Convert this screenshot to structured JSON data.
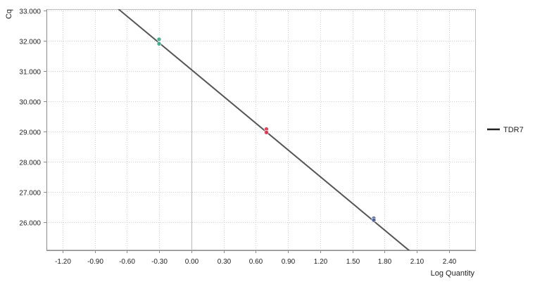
{
  "chart_data": {
    "type": "scatter",
    "title": "",
    "xlabel": "Log Quantity",
    "ylabel": "Cq",
    "xlim": [
      -1.35,
      2.65
    ],
    "ylim": [
      25.0,
      33.0
    ],
    "x_ticks": [
      "-1.20",
      "-0.90",
      "-0.60",
      "-0.30",
      "0.00",
      "0.30",
      "0.60",
      "0.90",
      "1.20",
      "1.50",
      "1.80",
      "2.10",
      "2.40"
    ],
    "y_ticks": [
      "26.000",
      "27.000",
      "28.000",
      "29.000",
      "30.000",
      "31.000",
      "32.000",
      "33.000"
    ],
    "grid": true,
    "legend_position": "right",
    "series": [
      {
        "name": "TDR7",
        "type": "line",
        "color": "#555555",
        "x": [
          -0.68,
          2.05
        ],
        "y": [
          33.05,
          25.0
        ]
      }
    ],
    "points": [
      {
        "x": -0.301,
        "y": 32.05,
        "color": "#3aa98a"
      },
      {
        "x": -0.301,
        "y": 31.9,
        "color": "#3aa98a"
      },
      {
        "x": 0.699,
        "y": 29.08,
        "color": "#e0334f"
      },
      {
        "x": 0.699,
        "y": 28.97,
        "color": "#e0334f"
      },
      {
        "x": 1.699,
        "y": 26.13,
        "color": "#4a5f9a"
      },
      {
        "x": 1.699,
        "y": 26.07,
        "color": "#4a5f9a"
      }
    ]
  }
}
